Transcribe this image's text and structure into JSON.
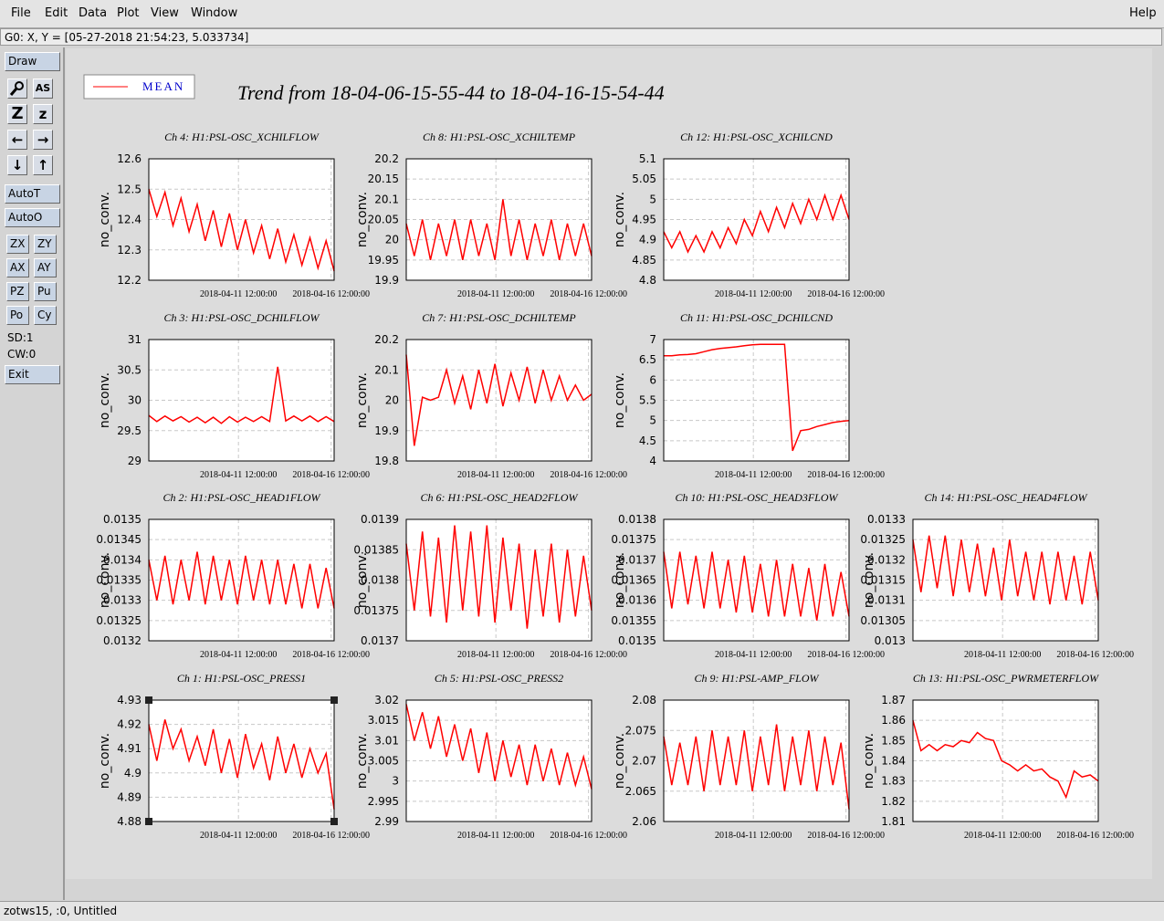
{
  "menu": [
    "File",
    "Edit",
    "Data",
    "Plot",
    "View",
    "Window"
  ],
  "help": "Help",
  "status": "G0: X, Y = [05-27-2018 21:54:23, 5.033734]",
  "toolbar": {
    "draw": "Draw",
    "icons": [
      "AS",
      "Z",
      "z"
    ],
    "buttons": [
      "AutoT",
      "AutoO"
    ],
    "pairs": [
      [
        "ZX",
        "ZY"
      ],
      [
        "AX",
        "AY"
      ],
      [
        "PZ",
        "Pu"
      ],
      [
        "Po",
        "Cy"
      ]
    ],
    "info": [
      "SD:1",
      "CW:0"
    ],
    "exit": "Exit"
  },
  "footer": "zotws15, :0, Untitled",
  "legend": "MEAN",
  "title": "Trend from 18-04-06-15-55-44 to 18-04-16-15-54-44",
  "time_axis": {
    "xlim": [
      "2018-04-06 15:55:44",
      "2018-04-16 15:54:44"
    ],
    "xticks": [
      "2018-04-11 12:00:00",
      "2018-04-16 12:00:00"
    ]
  },
  "chart_data": [
    {
      "type": "line",
      "title": "Ch 4: H1:PSL-OSC_XCHILFLOW",
      "y_label": "no_conv.",
      "color": "#ff0000",
      "grid": true,
      "ylim": [
        12.2,
        12.6
      ],
      "yticks": [
        12.2,
        12.3,
        12.4,
        12.5,
        12.6
      ],
      "values": [
        12.5,
        12.41,
        12.49,
        12.38,
        12.47,
        12.36,
        12.45,
        12.33,
        12.43,
        12.31,
        12.42,
        12.3,
        12.4,
        12.29,
        12.38,
        12.27,
        12.37,
        12.26,
        12.35,
        12.25,
        12.34,
        12.24,
        12.33,
        12.23
      ]
    },
    {
      "type": "line",
      "title": "Ch 8: H1:PSL-OSC_XCHILTEMP",
      "y_label": "no_conv.",
      "color": "#ff0000",
      "grid": true,
      "ylim": [
        19.9,
        20.2
      ],
      "yticks": [
        19.9,
        19.95,
        20,
        20.05,
        20.1,
        20.15,
        20.2
      ],
      "values": [
        20.04,
        19.96,
        20.05,
        19.95,
        20.04,
        19.96,
        20.05,
        19.95,
        20.05,
        19.96,
        20.04,
        19.95,
        20.1,
        19.96,
        20.05,
        19.95,
        20.04,
        19.96,
        20.05,
        19.95,
        20.04,
        19.96,
        20.04,
        19.96
      ]
    },
    {
      "type": "line",
      "title": "Ch 12: H1:PSL-OSC_XCHILCND",
      "y_label": "no_conv.",
      "color": "#ff0000",
      "grid": true,
      "ylim": [
        4.8,
        5.1
      ],
      "yticks": [
        4.8,
        4.85,
        4.9,
        4.95,
        5,
        5.05,
        5.1
      ],
      "values": [
        4.92,
        4.88,
        4.92,
        4.87,
        4.91,
        4.87,
        4.92,
        4.88,
        4.93,
        4.89,
        4.95,
        4.91,
        4.97,
        4.92,
        4.98,
        4.93,
        4.99,
        4.94,
        5,
        4.95,
        5.01,
        4.95,
        5.01,
        4.95
      ]
    },
    {
      "type": "line",
      "title": "Ch 3: H1:PSL-OSC_DCHILFLOW",
      "y_label": "no_conv.",
      "color": "#ff0000",
      "grid": true,
      "ylim": [
        29,
        31
      ],
      "yticks": [
        29,
        29.5,
        30,
        30.5,
        31
      ],
      "values": [
        29.75,
        29.65,
        29.74,
        29.66,
        29.73,
        29.64,
        29.72,
        29.63,
        29.72,
        29.62,
        29.73,
        29.64,
        29.72,
        29.65,
        29.73,
        29.65,
        30.55,
        29.66,
        29.74,
        29.66,
        29.74,
        29.65,
        29.73,
        29.65
      ]
    },
    {
      "type": "line",
      "title": "Ch 7: H1:PSL-OSC_DCHILTEMP",
      "y_label": "no_conv.",
      "color": "#ff0000",
      "grid": true,
      "ylim": [
        19.8,
        20.2
      ],
      "yticks": [
        19.8,
        19.9,
        20,
        20.1,
        20.2
      ],
      "values": [
        20.15,
        19.85,
        20.01,
        20,
        20.01,
        20.1,
        19.99,
        20.08,
        19.97,
        20.1,
        19.99,
        20.12,
        19.98,
        20.09,
        20,
        20.11,
        19.99,
        20.1,
        20,
        20.08,
        20,
        20.05,
        20,
        20.02
      ]
    },
    {
      "type": "line",
      "title": "Ch 11: H1:PSL-OSC_DCHILCND",
      "y_label": "no_conv.",
      "color": "#ff0000",
      "grid": true,
      "ylim": [
        4,
        7
      ],
      "yticks": [
        4,
        4.5,
        5,
        5.5,
        6,
        6.5,
        7
      ],
      "values": [
        6.6,
        6.6,
        6.62,
        6.63,
        6.65,
        6.7,
        6.75,
        6.78,
        6.8,
        6.82,
        6.85,
        6.87,
        6.88,
        6.88,
        6.88,
        6.88,
        4.25,
        4.75,
        4.78,
        4.85,
        4.9,
        4.95,
        4.98,
        5
      ]
    },
    {
      "type": "line",
      "title": "Ch 2: H1:PSL-OSC_HEAD1FLOW",
      "y_label": "no_conv.",
      "color": "#ff0000",
      "grid": true,
      "ylim": [
        0.0132,
        0.0135
      ],
      "yticks": [
        0.0132,
        0.01325,
        0.0133,
        0.01335,
        0.0134,
        0.01345,
        0.0135
      ],
      "values": [
        0.0134,
        0.0133,
        0.01341,
        0.01329,
        0.0134,
        0.0133,
        0.01342,
        0.01329,
        0.01341,
        0.0133,
        0.0134,
        0.01329,
        0.01341,
        0.0133,
        0.0134,
        0.01329,
        0.0134,
        0.01329,
        0.01339,
        0.01328,
        0.01339,
        0.01328,
        0.01338,
        0.01328
      ]
    },
    {
      "type": "line",
      "title": "Ch 6: H1:PSL-OSC_HEAD2FLOW",
      "y_label": "no_conv.",
      "color": "#ff0000",
      "grid": true,
      "ylim": [
        0.0137,
        0.0139
      ],
      "yticks": [
        0.0137,
        0.01375,
        0.0138,
        0.01385,
        0.0139
      ],
      "values": [
        0.01386,
        0.01375,
        0.01388,
        0.01374,
        0.01387,
        0.01373,
        0.01389,
        0.01375,
        0.01388,
        0.01374,
        0.01389,
        0.01373,
        0.01387,
        0.01375,
        0.01386,
        0.01372,
        0.01385,
        0.01374,
        0.01386,
        0.01373,
        0.01385,
        0.01374,
        0.01384,
        0.01375
      ]
    },
    {
      "type": "line",
      "title": "Ch 10: H1:PSL-OSC_HEAD3FLOW",
      "y_label": "no_conv.",
      "color": "#ff0000",
      "grid": true,
      "ylim": [
        0.0135,
        0.0138
      ],
      "yticks": [
        0.0135,
        0.01355,
        0.0136,
        0.01365,
        0.0137,
        0.01375,
        0.0138
      ],
      "values": [
        0.01372,
        0.01358,
        0.01372,
        0.01359,
        0.01371,
        0.01358,
        0.01372,
        0.01358,
        0.0137,
        0.01357,
        0.01371,
        0.01357,
        0.01369,
        0.01356,
        0.0137,
        0.01356,
        0.01369,
        0.01356,
        0.01368,
        0.01355,
        0.01369,
        0.01356,
        0.01367,
        0.01356
      ]
    },
    {
      "type": "line",
      "title": "Ch 14: H1:PSL-OSC_HEAD4FLOW",
      "y_label": "no_conv.",
      "color": "#ff0000",
      "grid": true,
      "ylim": [
        0.013,
        0.0133
      ],
      "yticks": [
        0.013,
        0.01305,
        0.0131,
        0.01315,
        0.0132,
        0.01325,
        0.0133
      ],
      "values": [
        0.01325,
        0.01312,
        0.01326,
        0.01313,
        0.01326,
        0.01311,
        0.01325,
        0.01312,
        0.01324,
        0.01311,
        0.01323,
        0.0131,
        0.01325,
        0.01311,
        0.01322,
        0.0131,
        0.01322,
        0.01309,
        0.01322,
        0.0131,
        0.01321,
        0.01309,
        0.01322,
        0.0131
      ]
    },
    {
      "type": "line",
      "title": "Ch 1: H1:PSL-OSC_PRESS1",
      "y_label": "no_conv.",
      "color": "#ff0000",
      "grid": true,
      "ylim": [
        4.88,
        4.93
      ],
      "yticks": [
        4.88,
        4.89,
        4.9,
        4.91,
        4.92,
        4.93
      ],
      "values": [
        4.92,
        4.905,
        4.922,
        4.91,
        4.918,
        4.905,
        4.915,
        4.903,
        4.918,
        4.9,
        4.914,
        4.898,
        4.916,
        4.902,
        4.912,
        4.897,
        4.915,
        4.9,
        4.912,
        4.898,
        4.91,
        4.9,
        4.908,
        4.885
      ]
    },
    {
      "type": "line",
      "title": "Ch 5: H1:PSL-OSC_PRESS2",
      "y_label": "no_conv.",
      "color": "#ff0000",
      "grid": true,
      "ylim": [
        2.99,
        3.02
      ],
      "yticks": [
        2.99,
        2.995,
        3,
        3.005,
        3.01,
        3.015,
        3.02
      ],
      "values": [
        3.019,
        3.01,
        3.017,
        3.008,
        3.016,
        3.006,
        3.014,
        3.005,
        3.013,
        3.002,
        3.012,
        3,
        3.01,
        3.001,
        3.009,
        2.999,
        3.009,
        3,
        3.008,
        2.999,
        3.007,
        2.999,
        3.006,
        2.998
      ]
    },
    {
      "type": "line",
      "title": "Ch 9: H1:PSL-AMP_FLOW",
      "y_label": "no_conv.",
      "color": "#ff0000",
      "grid": true,
      "ylim": [
        2.06,
        2.08
      ],
      "yticks": [
        2.06,
        2.065,
        2.07,
        2.075,
        2.08
      ],
      "values": [
        2.074,
        2.066,
        2.073,
        2.066,
        2.074,
        2.065,
        2.075,
        2.066,
        2.074,
        2.066,
        2.075,
        2.065,
        2.074,
        2.066,
        2.076,
        2.065,
        2.074,
        2.066,
        2.075,
        2.065,
        2.074,
        2.066,
        2.073,
        2.062
      ]
    },
    {
      "type": "line",
      "title": "Ch 13: H1:PSL-OSC_PWRMETERFLOW",
      "y_label": "no_conv.",
      "color": "#ff0000",
      "grid": true,
      "ylim": [
        1.81,
        1.87
      ],
      "yticks": [
        1.81,
        1.82,
        1.83,
        1.84,
        1.85,
        1.86,
        1.87
      ],
      "values": [
        1.86,
        1.845,
        1.848,
        1.845,
        1.848,
        1.847,
        1.85,
        1.849,
        1.854,
        1.851,
        1.85,
        1.84,
        1.838,
        1.835,
        1.838,
        1.835,
        1.836,
        1.832,
        1.83,
        1.822,
        1.835,
        1.832,
        1.833,
        1.83
      ]
    }
  ]
}
